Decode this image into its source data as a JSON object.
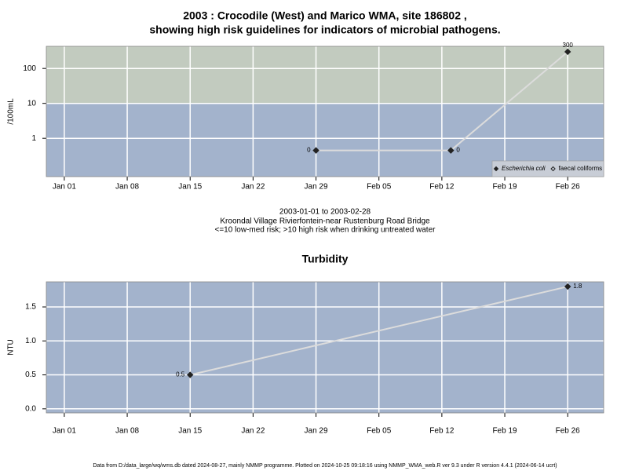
{
  "chart_data": [
    {
      "type": "line",
      "title": [
        "2003 : Crocodile (West) and Marico WMA, site 186802 ,",
        "showing high risk guidelines for indicators of microbial pathogens."
      ],
      "caption": [
        "2003-01-01 to 2003-02-28",
        "Kroondal Village Rivierfontein-near Rustenburg Road Bridge",
        "<=10 low-med risk; >10 high risk when drinking untreated water"
      ],
      "ylabel": "/100mL",
      "log_scale": true,
      "grid": true,
      "threshold": 10,
      "band_colors": [
        "#a3b3cc",
        "#c2cbbf"
      ],
      "line_color": "#dcdcdc",
      "legend": "lower right",
      "x": [
        "2003-01-29",
        "2003-02-13",
        "2003-02-26"
      ],
      "series": [
        {
          "name": "Escherichia coli",
          "color": "#222222",
          "marker": "filled",
          "italic": true,
          "values": [
            0.45,
            0.45,
            300
          ],
          "value_labels": [
            "0",
            "0",
            "300"
          ]
        },
        {
          "name": "faecal coliforms",
          "color": "#222222",
          "marker": "open",
          "italic": false,
          "values": [
            null,
            null,
            null
          ]
        }
      ],
      "xlim": [
        "2002-12-30",
        "2003-03-02"
      ],
      "xticks": [
        {
          "value": "2003-01-01",
          "label": "Jan 01"
        },
        {
          "value": "2003-01-08",
          "label": "Jan 08"
        },
        {
          "value": "2003-01-15",
          "label": "Jan 15"
        },
        {
          "value": "2003-01-22",
          "label": "Jan 22"
        },
        {
          "value": "2003-01-29",
          "label": "Jan 29"
        },
        {
          "value": "2003-02-05",
          "label": "Feb 05"
        },
        {
          "value": "2003-02-12",
          "label": "Feb 12"
        },
        {
          "value": "2003-02-19",
          "label": "Feb 19"
        },
        {
          "value": "2003-02-26",
          "label": "Feb 26"
        }
      ],
      "ylim": [
        0.08,
        430
      ],
      "yticks": [
        1,
        10,
        100
      ]
    },
    {
      "type": "line",
      "title": [
        "Turbidity"
      ],
      "ylabel": "NTU",
      "log_scale": false,
      "grid": true,
      "band_colors": [
        "#a3b3cc"
      ],
      "line_color": "#dcdcdc",
      "x": [
        "2003-01-15",
        "2003-02-26"
      ],
      "series": [
        {
          "name": "Turbidity",
          "color": "#222222",
          "marker": "filled",
          "values": [
            0.5,
            1.8
          ]
        }
      ],
      "xlim": [
        "2002-12-30",
        "2003-03-02"
      ],
      "xticks": [
        {
          "value": "2003-01-01",
          "label": "Jan 01"
        },
        {
          "value": "2003-01-08",
          "label": "Jan 08"
        },
        {
          "value": "2003-01-15",
          "label": "Jan 15"
        },
        {
          "value": "2003-01-22",
          "label": "Jan 22"
        },
        {
          "value": "2003-01-29",
          "label": "Jan 29"
        },
        {
          "value": "2003-02-05",
          "label": "Feb 05"
        },
        {
          "value": "2003-02-12",
          "label": "Feb 12"
        },
        {
          "value": "2003-02-19",
          "label": "Feb 19"
        },
        {
          "value": "2003-02-26",
          "label": "Feb 26"
        }
      ],
      "ylim": [
        -0.06,
        1.87
      ],
      "yticks": [
        {
          "value": 0,
          "label": "0.0"
        },
        0.5,
        {
          "value": 1,
          "label": "1.0"
        },
        1.5
      ]
    }
  ],
  "footer": "Data from D:/data_large/wq/wms.db dated 2024-08-27, mainly NMMP programme. Plotted on 2024-10-25 09:18:16 using NMMP_WMA_web.R ver 9.3 under R version 4.4.1 (2024-06-14 ucrt)"
}
